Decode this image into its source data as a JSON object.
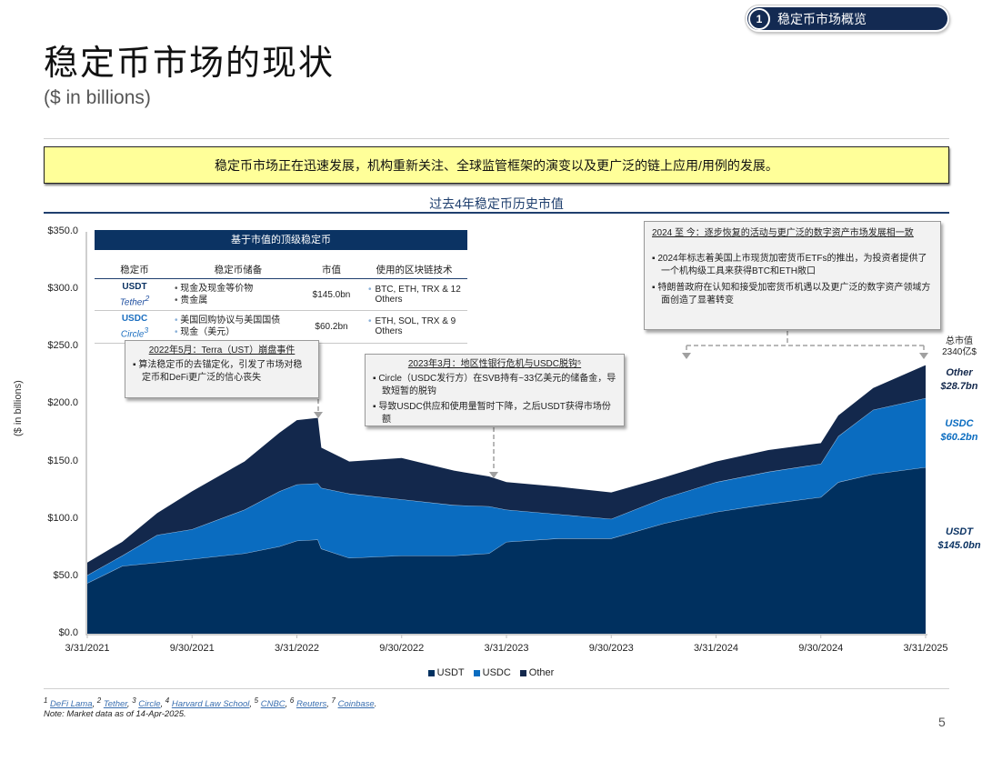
{
  "section": {
    "number": "1",
    "label": "稳定币市场概览"
  },
  "title": "稳定币市场的现状",
  "subtitle": "($ in billions)",
  "banner": "稳定币市场正在迅速发展，机构重新关注、全球监管框架的演变以及更广泛的链上应用/用例的发展。",
  "table": {
    "title": "基于市值的顶级稳定币",
    "headers": [
      "稳定币",
      "稳定币储备",
      "市值",
      "使用的区块链技术"
    ],
    "rows": [
      {
        "symbol": "USDT",
        "issuer": "Tether",
        "issuer_sup": "2",
        "reserves": [
          "现金及现金等价物",
          "贵金属"
        ],
        "market_cap": "$145.0bn",
        "chains": "BTC, ETH, TRX & 12 Others"
      },
      {
        "symbol": "USDC",
        "issuer": "Circle",
        "issuer_sup": "3",
        "reserves": [
          "美国回购协议与美国国债",
          "现金（美元）"
        ],
        "market_cap": "$60.2bn",
        "chains": "ETH, SOL, TRX & 9 Others"
      }
    ]
  },
  "callouts": {
    "terra": {
      "heading": "2022年5月：Terra（UST）崩盘事件",
      "bullets": [
        "算法稳定币的去锚定化，引发了市场对稳定币和DeFi更广泛的信心丧失"
      ]
    },
    "svb": {
      "heading": "2023年3月：地区性银行危机与USDC脱钩⁵",
      "bullets": [
        "Circle（USDC发行方）在SVB持有~33亿美元的储备金，导致短暂的脱钩",
        "导致USDC供应和使用量暂时下降，之后USDT获得市场份额"
      ]
    },
    "recent": {
      "heading": "2024 至 今：逐步恢复的活动与更广泛的数字资产市场发展相一致",
      "bullets": [
        "2024年标志着美国上市现货加密货币ETFs的推出，为投资者提供了一个机构级工具来获得BTC和ETH敞口",
        "特朗普政府在认知和接受加密货币机遇以及更广泛的数字资产领域方面创造了显著转变"
      ]
    }
  },
  "end_labels": {
    "total": "总市值\n2340亿$",
    "total_line1": "总市值",
    "total_line2": "2340亿$",
    "other_name": "Other",
    "other_value": "$28.7bn",
    "usdc_name": "USDC",
    "usdc_value": "$60.2bn",
    "usdt_name": "USDT",
    "usdt_value": "$145.0bn"
  },
  "footnotes": {
    "sources": [
      {
        "sup": "1",
        "text": "DeFi Lama"
      },
      {
        "sup": "2",
        "text": "Tether"
      },
      {
        "sup": "3",
        "text": "Circle"
      },
      {
        "sup": "4",
        "text": "Harvard Law School"
      },
      {
        "sup": "5",
        "text": "CNBC"
      },
      {
        "sup": "6",
        "text": "Reuters"
      },
      {
        "sup": "7",
        "text": "Coinbase"
      }
    ],
    "note": "Note: Market data as of 14-Apr-2025."
  },
  "page_number": "5",
  "colors": {
    "usdt": "#00305f",
    "usdc": "#0a6cc0",
    "other": "#13284c",
    "accent": "#1f3f6e",
    "banner": "#ffff99"
  },
  "chart_data": {
    "type": "area",
    "stacked": true,
    "title": "过去4年稳定币历史市值",
    "xlabel": "",
    "ylabel": "($ in billions)",
    "ylim": [
      0,
      350
    ],
    "yticks": [
      "$0.0",
      "$50.0",
      "$100.0",
      "$150.0",
      "$200.0",
      "$250.0",
      "$300.0",
      "$350.0"
    ],
    "xticks": [
      "3/31/2021",
      "9/30/2021",
      "3/31/2022",
      "9/30/2022",
      "3/31/2023",
      "9/30/2023",
      "3/31/2024",
      "9/30/2024",
      "3/31/2025"
    ],
    "x_months": [
      0,
      2,
      4,
      6,
      9,
      11,
      12,
      13.2,
      13.4,
      15,
      18,
      21,
      23,
      24,
      27,
      30,
      33,
      36,
      39,
      42,
      43,
      45,
      48
    ],
    "series": [
      {
        "name": "USDT",
        "values": [
          44,
          59,
          62,
          65,
          70,
          76,
          81,
          82,
          74,
          66,
          68,
          68,
          70,
          80,
          83,
          83,
          96,
          106,
          113,
          119,
          132,
          139,
          145
        ]
      },
      {
        "name": "USDC",
        "values": [
          7,
          9,
          24,
          26,
          38,
          48,
          49,
          49,
          53,
          56,
          49,
          44,
          41,
          28,
          21,
          17,
          22,
          26,
          28,
          29,
          40,
          56,
          60.2
        ]
      },
      {
        "name": "Other",
        "values": [
          11,
          12,
          19,
          33,
          42,
          51,
          56,
          57,
          35,
          28,
          36,
          30,
          26,
          24,
          24,
          23,
          18,
          18,
          19,
          18,
          18,
          19,
          28.7
        ]
      }
    ],
    "legend": [
      "USDT",
      "USDC",
      "Other"
    ],
    "legend_position": "bottom",
    "grid": false
  }
}
